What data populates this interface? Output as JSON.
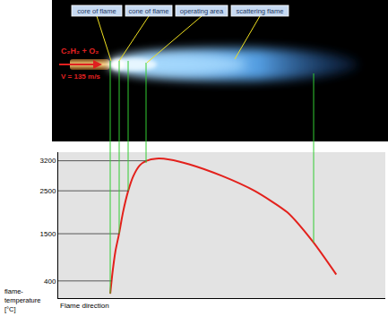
{
  "chart_data": {
    "type": "line",
    "x": [
      15.9,
      16.6,
      17.5,
      18.6,
      19.8,
      21.4,
      23,
      25,
      27,
      30,
      34,
      40,
      50,
      60,
      70,
      78,
      85
    ],
    "values": [
      100,
      600,
      1100,
      1500,
      2000,
      2500,
      2850,
      3100,
      3200,
      3250,
      3230,
      3120,
      2850,
      2500,
      2000,
      1300,
      550
    ],
    "color": "#e3211c",
    "xlim": [
      0,
      100
    ],
    "ylim": [
      0,
      3400
    ],
    "yticks": [
      400,
      1500,
      2500,
      3200
    ],
    "tick_labels": "y",
    "grid": false,
    "x_label": "Flame direction",
    "y_label": [
      "flame-",
      "temperature",
      "[°C]"
    ]
  },
  "photo": {
    "labels": [
      "core of flame",
      "cone of flame",
      "operating area",
      "scattering flame"
    ],
    "gas": "C₂H₂ + O₂",
    "velocity": "V = 135 m/s"
  }
}
